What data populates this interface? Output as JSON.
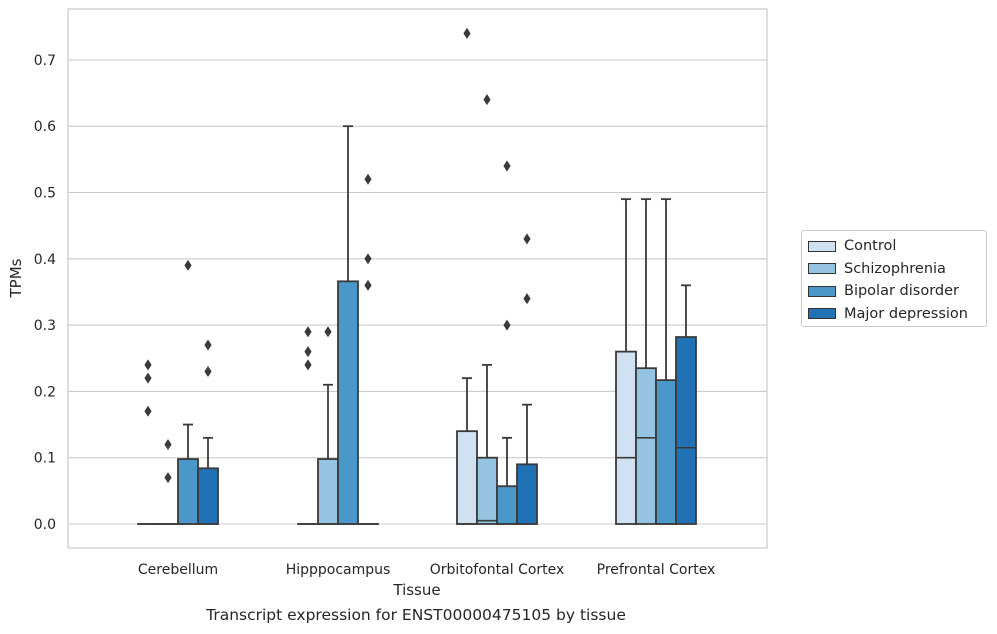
{
  "chart_data": {
    "type": "box",
    "caption": "Transcript expression for ENST00000475105 by tissue",
    "xlabel": "Tissue",
    "ylabel": "TPMs",
    "ylim": [
      -0.035,
      0.78
    ],
    "yticks": [
      0.0,
      0.1,
      0.2,
      0.3,
      0.4,
      0.5,
      0.6,
      0.7
    ],
    "yticklabels": [
      "0.0",
      "0.1",
      "0.2",
      "0.3",
      "0.4",
      "0.5",
      "0.6",
      "0.7"
    ],
    "grid": true,
    "legend_position": "right",
    "categories": [
      "Cerebellum",
      "Hipppocampus",
      "Orbitofontal Cortex",
      "Prefrontal Cortex"
    ],
    "series": [
      {
        "name": "Control",
        "color": "#d0e1f2",
        "boxes": [
          {
            "q1": 0.0,
            "median": 0.0,
            "q3": 0.0,
            "whislo": 0.0,
            "whishi": 0.0,
            "fliers": [
              0.24,
              0.22,
              0.17
            ]
          },
          {
            "q1": 0.0,
            "median": 0.0,
            "q3": 0.0,
            "whislo": 0.0,
            "whishi": 0.0,
            "fliers": [
              0.29,
              0.26,
              0.24
            ]
          },
          {
            "q1": 0.0,
            "median": 0.0,
            "q3": 0.14,
            "whislo": 0.0,
            "whishi": 0.22,
            "fliers": [
              0.74
            ]
          },
          {
            "q1": 0.0,
            "median": 0.1,
            "q3": 0.26,
            "whislo": 0.0,
            "whishi": 0.49,
            "fliers": []
          }
        ]
      },
      {
        "name": "Schizophrenia",
        "color": "#94c4df",
        "boxes": [
          {
            "q1": 0.0,
            "median": 0.0,
            "q3": 0.0,
            "whislo": 0.0,
            "whishi": 0.0,
            "fliers": [
              0.12,
              0.07
            ]
          },
          {
            "q1": 0.0,
            "median": 0.0,
            "q3": 0.098,
            "whislo": 0.0,
            "whishi": 0.21,
            "fliers": [
              0.29
            ]
          },
          {
            "q1": 0.0,
            "median": 0.005,
            "q3": 0.1,
            "whislo": 0.0,
            "whishi": 0.24,
            "fliers": [
              0.64
            ]
          },
          {
            "q1": 0.0,
            "median": 0.13,
            "q3": 0.235,
            "whislo": 0.0,
            "whishi": 0.49,
            "fliers": []
          }
        ]
      },
      {
        "name": "Bipolar disorder",
        "color": "#4a98c9",
        "boxes": [
          {
            "q1": 0.0,
            "median": 0.0,
            "q3": 0.098,
            "whislo": 0.0,
            "whishi": 0.15,
            "fliers": [
              0.39
            ]
          },
          {
            "q1": 0.0,
            "median": 0.0,
            "q3": 0.366,
            "whislo": 0.0,
            "whishi": 0.6,
            "fliers": []
          },
          {
            "q1": 0.0,
            "median": 0.0,
            "q3": 0.057,
            "whislo": 0.0,
            "whishi": 0.13,
            "fliers": [
              0.54,
              0.3
            ]
          },
          {
            "q1": 0.0,
            "median": 0.0,
            "q3": 0.217,
            "whislo": 0.0,
            "whishi": 0.49,
            "fliers": []
          }
        ]
      },
      {
        "name": "Major depression",
        "color": "#2171b5",
        "boxes": [
          {
            "q1": 0.0,
            "median": 0.0,
            "q3": 0.084,
            "whislo": 0.0,
            "whishi": 0.13,
            "fliers": [
              0.27,
              0.23
            ]
          },
          {
            "q1": 0.0,
            "median": 0.0,
            "q3": 0.0,
            "whislo": 0.0,
            "whishi": 0.0,
            "fliers": [
              0.52,
              0.4,
              0.36
            ]
          },
          {
            "q1": 0.0,
            "median": 0.0,
            "q3": 0.09,
            "whislo": 0.0,
            "whishi": 0.18,
            "fliers": [
              0.43,
              0.34
            ]
          },
          {
            "q1": 0.0,
            "median": 0.115,
            "q3": 0.282,
            "whislo": 0.0,
            "whishi": 0.36,
            "fliers": []
          }
        ]
      }
    ]
  }
}
